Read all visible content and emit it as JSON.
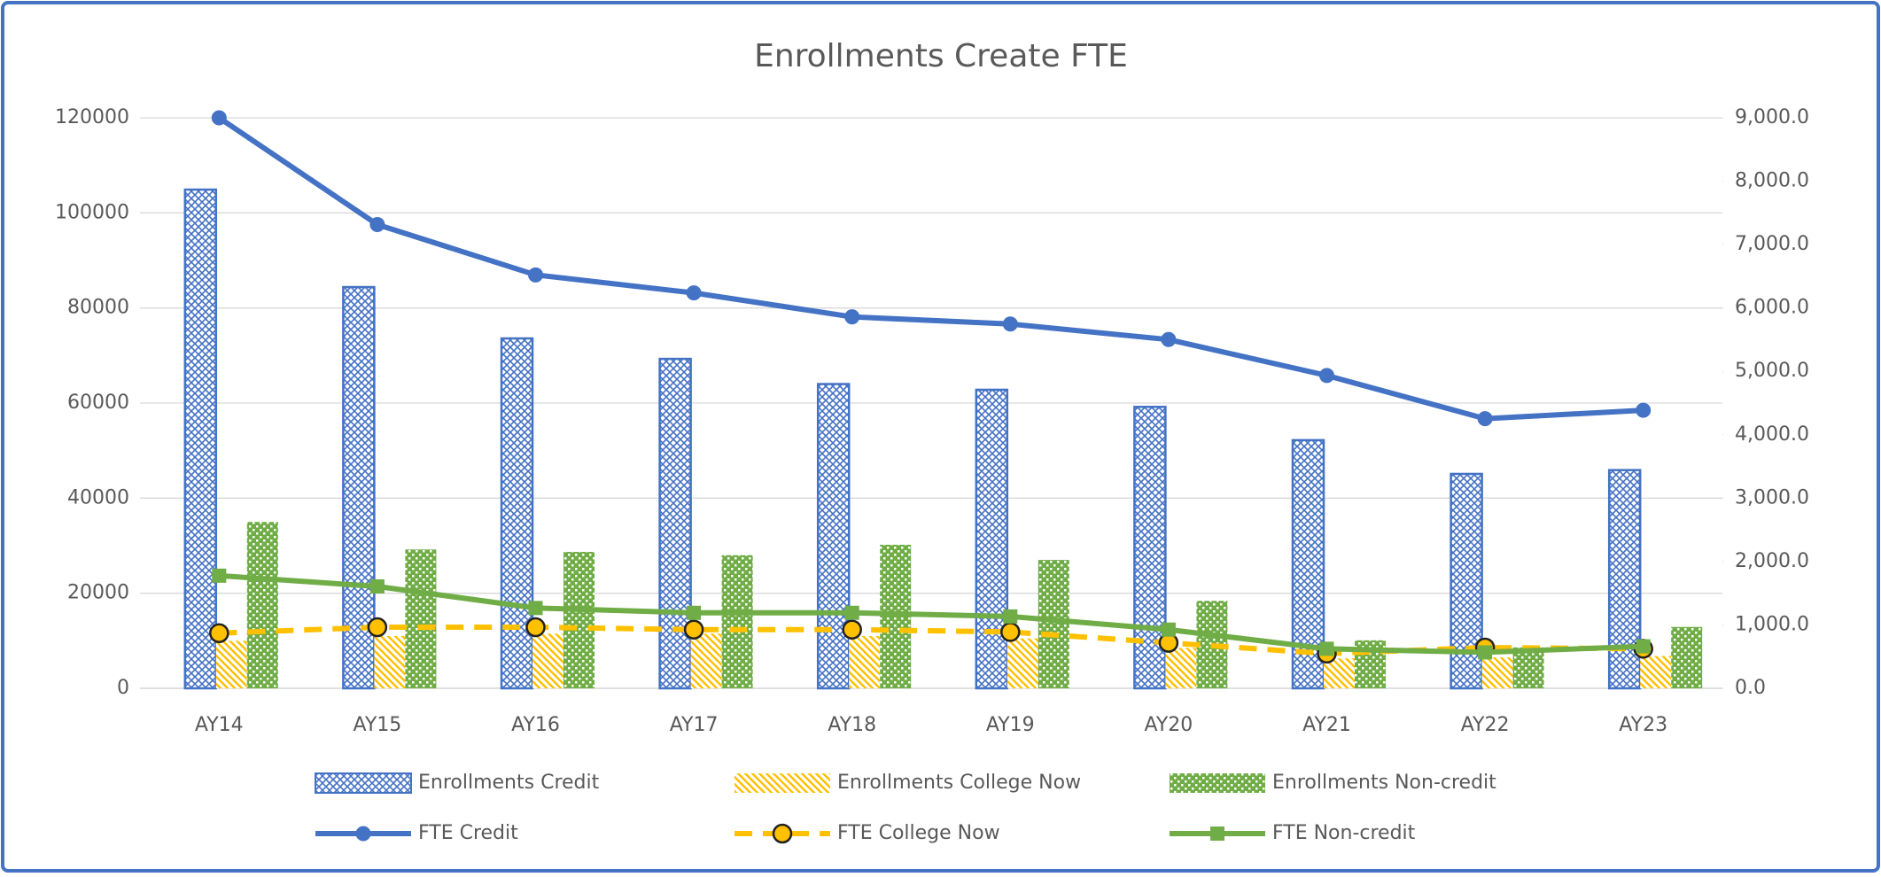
{
  "chart_data": {
    "type": "bar_line",
    "title": "Enrollments Create FTE",
    "categories": [
      "AY14",
      "AY15",
      "AY16",
      "AY17",
      "AY18",
      "AY19",
      "AY20",
      "AY21",
      "AY22",
      "AY23"
    ],
    "series": [
      {
        "name": "Enrollments Credit",
        "type": "bar",
        "color": "#4472c4",
        "pattern": "crosshatch",
        "values": [
          104900,
          84400,
          73600,
          69300,
          64000,
          62800,
          59200,
          52200,
          45100,
          45900
        ]
      },
      {
        "name": "Enrollments College Now",
        "type": "bar",
        "color": "#ffc000",
        "pattern": "diagonal",
        "values": [
          10000,
          11000,
          11500,
          11500,
          11000,
          10500,
          8500,
          6300,
          6500,
          6800
        ]
      },
      {
        "name": "Enrollments Non-credit",
        "type": "bar",
        "color": "#70ad47",
        "pattern": "grid",
        "values": [
          35000,
          29200,
          28700,
          28000,
          30200,
          27000,
          18400,
          10100,
          8600,
          12900
        ]
      },
      {
        "name": "FTE Credit",
        "type": "line",
        "axis": "y2",
        "color": "#4472c4",
        "marker": "circle",
        "dashed": false,
        "values": [
          9000,
          7316,
          6522,
          6238,
          5860,
          5747,
          5502,
          4935,
          4254,
          4386
        ]
      },
      {
        "name": "FTE College Now",
        "type": "line",
        "axis": "y2",
        "color": "#ffc000",
        "marker": "circle",
        "dashed": true,
        "values": [
          870,
          964,
          964,
          926,
          926,
          889,
          718,
          548,
          643,
          624
        ]
      },
      {
        "name": "FTE Non-credit",
        "type": "line",
        "axis": "y2",
        "color": "#70ad47",
        "marker": "square",
        "dashed": false,
        "values": [
          1777,
          1607,
          1267,
          1191,
          1191,
          1134,
          926,
          624,
          567,
          662
        ]
      }
    ],
    "ylim": [
      0,
      120000
    ],
    "yticks": [
      0,
      20000,
      40000,
      60000,
      80000,
      100000,
      120000
    ],
    "y2lim": [
      0,
      9000
    ],
    "y2ticks": [
      {
        "value": 0,
        "label": "0.0"
      },
      {
        "value": 1000,
        "label": "1,000.0"
      },
      {
        "value": 2000,
        "label": "2,000.0"
      },
      {
        "value": 3000,
        "label": "3,000.0"
      },
      {
        "value": 4000,
        "label": "4,000.0"
      },
      {
        "value": 5000,
        "label": "5,000.0"
      },
      {
        "value": 6000,
        "label": "6,000.0"
      },
      {
        "value": 7000,
        "label": "7,000.0"
      },
      {
        "value": 8000,
        "label": "8,000.0"
      },
      {
        "value": 9000,
        "label": "9,000.0"
      }
    ],
    "grid": true,
    "legend": "bottom"
  }
}
